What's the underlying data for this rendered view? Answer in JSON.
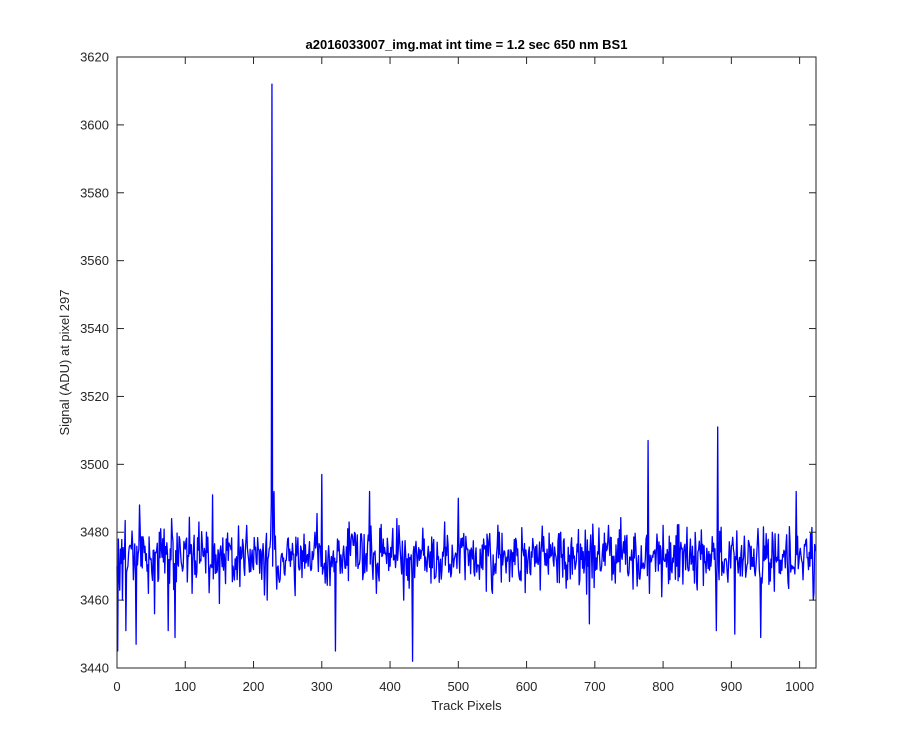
{
  "chart_data": {
    "type": "line",
    "title": "a2016033007_img.mat int time = 1.2 sec  650 nm BS1",
    "xlabel": "Track Pixels",
    "ylabel": "Signal (ADU) at pixel 297",
    "xlim": [
      0,
      1024
    ],
    "ylim": [
      3440,
      3620
    ],
    "xticks": [
      0,
      100,
      200,
      300,
      400,
      500,
      600,
      700,
      800,
      900,
      1000
    ],
    "yticks": [
      3440,
      3460,
      3480,
      3500,
      3520,
      3540,
      3560,
      3580,
      3600,
      3620
    ],
    "grid": false,
    "legend": "none",
    "series_color": "#0000ff",
    "axes_color": "#262626",
    "noise_description": {
      "n_points": 1024,
      "baseline": 3471,
      "typical_range": [
        3460,
        3485
      ]
    },
    "series": [
      {
        "x": [
          0,
          1,
          2,
          3,
          5,
          8,
          10,
          13,
          16,
          20,
          24,
          28,
          33,
          35,
          40,
          46,
          55,
          62,
          70,
          75,
          80,
          85,
          90,
          100,
          110,
          120,
          130,
          140,
          150,
          160,
          170,
          180,
          190,
          200,
          210,
          220,
          225,
          226,
          227,
          228,
          229,
          230,
          233,
          240,
          250,
          260,
          270,
          280,
          290,
          300,
          305,
          310,
          320,
          323,
          330,
          340,
          350,
          360,
          370,
          380,
          390,
          400,
          410,
          420,
          430,
          433,
          434,
          440,
          450,
          460,
          470,
          480,
          490,
          500,
          510,
          520,
          530,
          540,
          550,
          560,
          570,
          580,
          590,
          600,
          610,
          620,
          630,
          640,
          650,
          660,
          670,
          680,
          690,
          692,
          700,
          710,
          720,
          730,
          740,
          750,
          760,
          770,
          775,
          778,
          780,
          790,
          800,
          810,
          820,
          830,
          840,
          850,
          860,
          870,
          878,
          880,
          882,
          890,
          900,
          905,
          910,
          920,
          930,
          940,
          943,
          950,
          960,
          970,
          980,
          990,
          995,
          1000,
          1005,
          1010,
          1015,
          1020,
          1024
        ],
        "values": [
          3470,
          3445,
          3478,
          3468,
          3475,
          3460,
          3472,
          3451,
          3470,
          3476,
          3466,
          3447,
          3488,
          3470,
          3474,
          3462,
          3456,
          3480,
          3468,
          3451,
          3484,
          3449,
          3470,
          3475,
          3462,
          3483,
          3468,
          3491,
          3459,
          3478,
          3470,
          3464,
          3482,
          3469,
          3475,
          3460,
          3478,
          3488,
          3612,
          3470,
          3488,
          3492,
          3470,
          3472,
          3478,
          3466,
          3475,
          3470,
          3480,
          3497,
          3465,
          3476,
          3445,
          3478,
          3468,
          3483,
          3470,
          3466,
          3492,
          3462,
          3478,
          3470,
          3484,
          3460,
          3472,
          3442,
          3474,
          3470,
          3478,
          3465,
          3472,
          3483,
          3468,
          3490,
          3466,
          3474,
          3470,
          3476,
          3462,
          3480,
          3468,
          3474,
          3466,
          3472,
          3476,
          3463,
          3475,
          3470,
          3480,
          3466,
          3473,
          3472,
          3470,
          3453,
          3476,
          3470,
          3482,
          3465,
          3472,
          3468,
          3476,
          3470,
          3478,
          3507,
          3462,
          3474,
          3482,
          3466,
          3470,
          3474,
          3478,
          3463,
          3476,
          3470,
          3451,
          3511,
          3466,
          3472,
          3476,
          3450,
          3468,
          3474,
          3470,
          3476,
          3449,
          3472,
          3480,
          3468,
          3476,
          3470,
          3492,
          3474,
          3466,
          3478,
          3470,
          3460,
          3460
        ]
      }
    ]
  }
}
